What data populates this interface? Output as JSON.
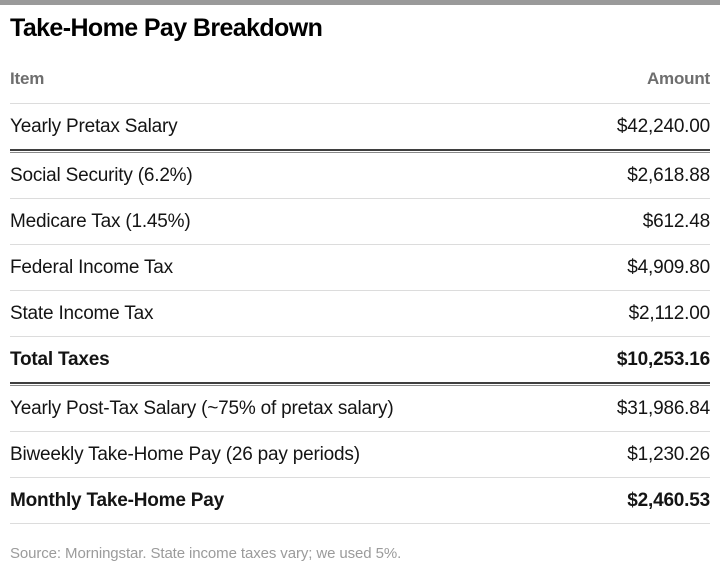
{
  "title": "Take-Home Pay Breakdown",
  "table": {
    "headers": {
      "item": "Item",
      "amount": "Amount"
    },
    "rows": [
      {
        "item": "Yearly Pretax Salary",
        "amount": "$42,240.00",
        "bold": false,
        "divider": "thick"
      },
      {
        "item": "Social Security (6.2%)",
        "amount": "$2,618.88",
        "bold": false,
        "divider": "thin"
      },
      {
        "item": "Medicare Tax (1.45%)",
        "amount": "$612.48",
        "bold": false,
        "divider": "thin"
      },
      {
        "item": "Federal Income Tax",
        "amount": "$4,909.80",
        "bold": false,
        "divider": "thin"
      },
      {
        "item": "State Income Tax",
        "amount": "$2,112.00",
        "bold": false,
        "divider": "thin"
      },
      {
        "item": "Total Taxes",
        "amount": "$10,253.16",
        "bold": true,
        "divider": "thick"
      },
      {
        "item": "Yearly Post-Tax Salary (~75% of pretax salary)",
        "amount": "$31,986.84",
        "bold": false,
        "divider": "thin"
      },
      {
        "item": "Biweekly Take-Home Pay (26 pay periods)",
        "amount": "$1,230.26",
        "bold": false,
        "divider": "thin"
      },
      {
        "item": "Monthly Take-Home Pay",
        "amount": "$2,460.53",
        "bold": true,
        "divider": "thin"
      }
    ]
  },
  "source_note": "Source: Morningstar. State income taxes vary; we used 5%.",
  "colors": {
    "topbar": "#9a9a9a",
    "header_text": "#6e6e6e",
    "row_text": "#141414",
    "divider_thin": "#dcdcdc",
    "divider_thick_dark": "#3f3f3f",
    "divider_thick_light": "#8a8a8a",
    "source_text": "#9b9b9b"
  },
  "chart_data": {
    "type": "table",
    "title": "Take-Home Pay Breakdown",
    "columns": [
      "Item",
      "Amount"
    ],
    "rows": [
      [
        "Yearly Pretax Salary",
        42240.0
      ],
      [
        "Social Security (6.2%)",
        2618.88
      ],
      [
        "Medicare Tax (1.45%)",
        612.48
      ],
      [
        "Federal Income Tax",
        4909.8
      ],
      [
        "State Income Tax",
        2112.0
      ],
      [
        "Total Taxes",
        10253.16
      ],
      [
        "Yearly Post-Tax Salary (~75% of pretax salary)",
        31986.84
      ],
      [
        "Biweekly Take-Home Pay (26 pay periods)",
        1230.26
      ],
      [
        "Monthly Take-Home Pay",
        2460.53
      ]
    ],
    "emphasized_rows": [
      "Total Taxes",
      "Monthly Take-Home Pay"
    ],
    "source": "Source: Morningstar. State income taxes vary; we used 5%."
  }
}
